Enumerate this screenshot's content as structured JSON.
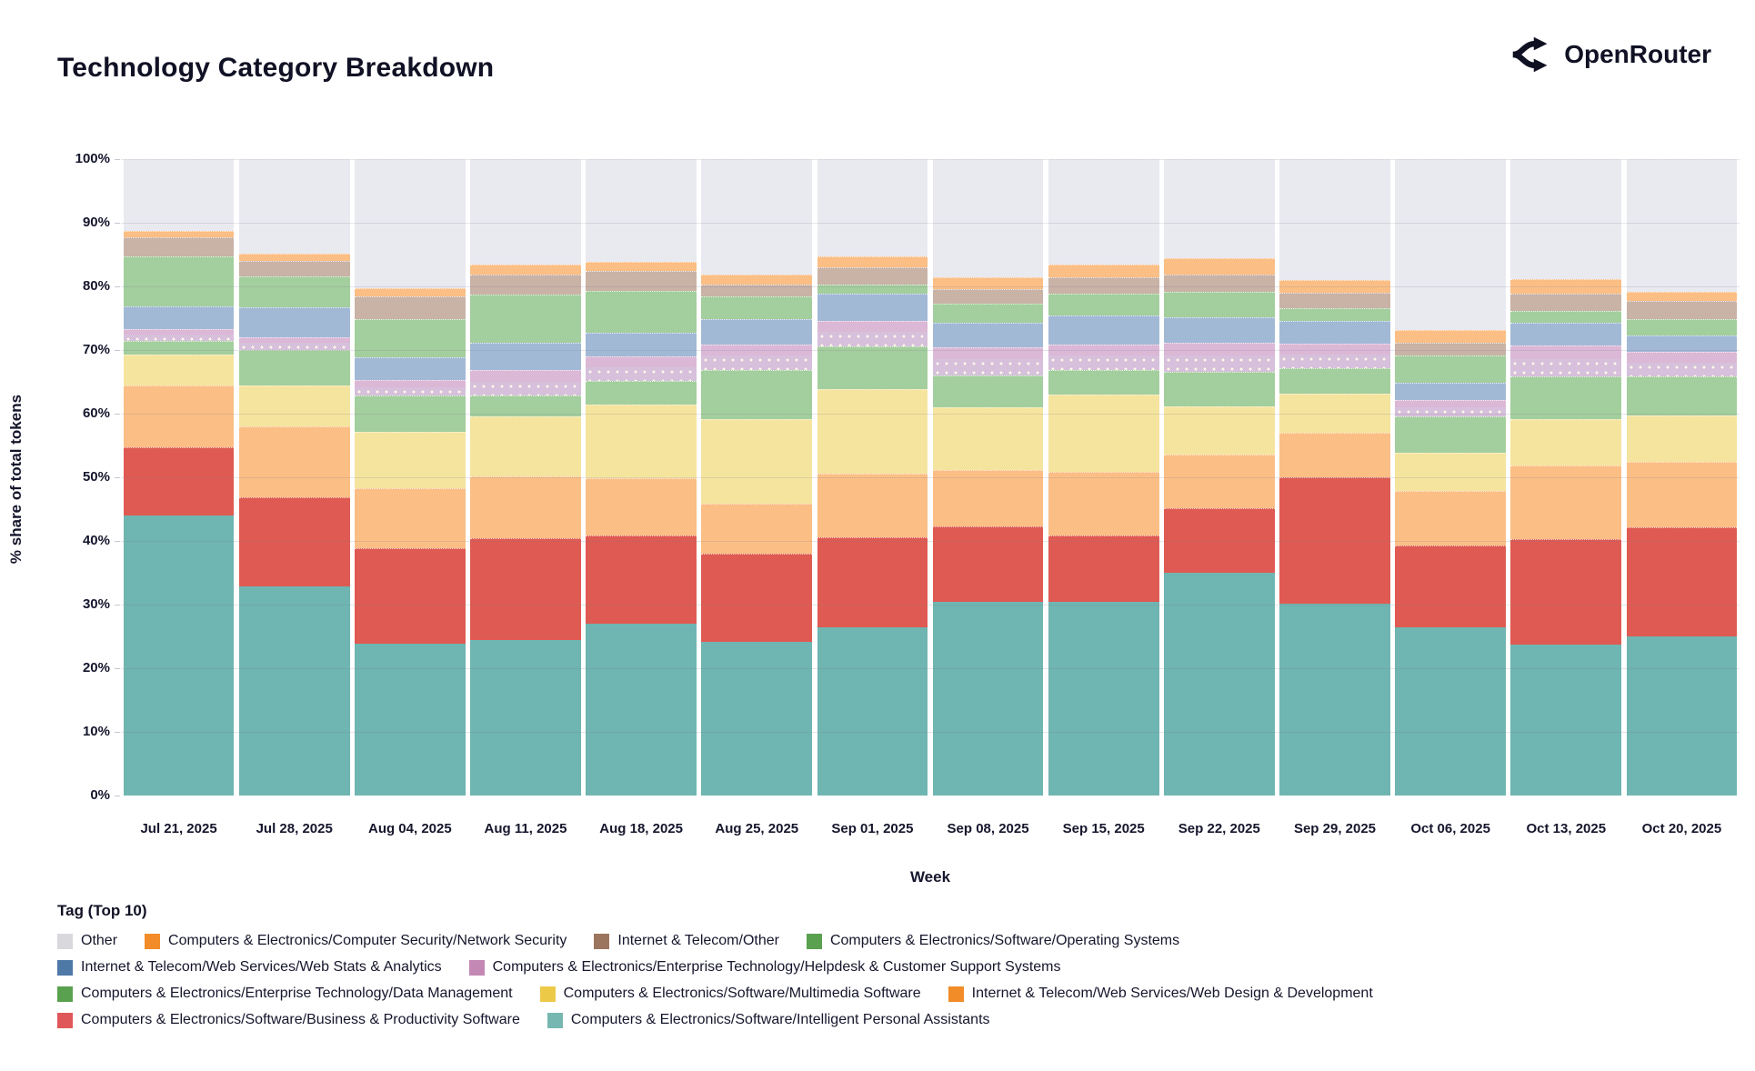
{
  "header": {
    "title": "Technology Category Breakdown",
    "brand": "OpenRouter"
  },
  "chart_data": {
    "type": "bar",
    "stacked": true,
    "title": "Technology Category Breakdown",
    "xlabel": "Week",
    "ylabel": "% share of total tokens",
    "ylim": [
      0,
      100
    ],
    "y_tick_step": 10,
    "y_tick_suffix": "%",
    "grid": true,
    "legend_title": "Tag (Top 10)",
    "legend_position": "bottom",
    "categories": [
      "Jul 21, 2025",
      "Jul 28, 2025",
      "Aug 04, 2025",
      "Aug 11, 2025",
      "Aug 18, 2025",
      "Aug 25, 2025",
      "Sep 01, 2025",
      "Sep 08, 2025",
      "Sep 15, 2025",
      "Sep 22, 2025",
      "Sep 29, 2025",
      "Oct 06, 2025",
      "Oct 13, 2025",
      "Oct 20, 2025"
    ],
    "series": [
      {
        "name": "Computers & Electronics/Software/Intelligent Personal Assistants",
        "bar_color": "#6FB5B1",
        "legend_color": "#76B7B2",
        "pattern": "none",
        "values": [
          44.0,
          32.9,
          23.8,
          24.4,
          27.0,
          24.2,
          26.4,
          30.5,
          30.5,
          35.0,
          30.2,
          26.4,
          23.7,
          25.0
        ]
      },
      {
        "name": "Computers & Electronics/Software/Business & Productivity Software",
        "bar_color": "#DF5A52",
        "legend_color": "#E05759",
        "pattern": "none",
        "values": [
          10.7,
          13.9,
          15.0,
          16.0,
          13.9,
          13.8,
          14.2,
          11.8,
          10.3,
          10.2,
          19.8,
          12.9,
          16.6,
          17.1
        ]
      },
      {
        "name": "Internet & Telecom/Web Services/Web Design & Development",
        "bar_color": "#FBBE85",
        "legend_color": "#F28C28",
        "pattern": "none",
        "values": [
          9.8,
          11.2,
          9.5,
          9.8,
          9.0,
          7.8,
          10.0,
          8.9,
          10.1,
          8.4,
          7.0,
          8.6,
          11.5,
          10.3
        ]
      },
      {
        "name": "Computers & Electronics/Software/Multimedia Software",
        "bar_color": "#F5E49E",
        "legend_color": "#EDC948",
        "pattern": "none",
        "values": [
          4.8,
          6.4,
          8.8,
          9.4,
          11.5,
          13.4,
          13.3,
          9.8,
          12.1,
          7.5,
          6.2,
          6.0,
          7.3,
          7.3
        ]
      },
      {
        "name": "Computers & Electronics/Enterprise Technology/Data Management",
        "bar_color": "#A3CE9D",
        "legend_color": "#59A14F",
        "pattern": "none",
        "values": [
          2.2,
          5.6,
          5.8,
          3.2,
          3.7,
          7.7,
          6.7,
          5.0,
          3.9,
          5.5,
          4.0,
          5.7,
          6.8,
          6.1
        ]
      },
      {
        "name": "Computers & Electronics/Enterprise Technology/Helpdesk & Customer Support Systems",
        "bar_color": "#DBB8D6",
        "legend_color": "#C488B4",
        "pattern": "dots-lower",
        "values": [
          1.8,
          2.0,
          2.4,
          4.0,
          3.9,
          3.9,
          4.0,
          4.5,
          4.0,
          4.6,
          3.8,
          2.6,
          4.8,
          3.9
        ]
      },
      {
        "name": "Internet & Telecom/Web Services/Web Stats & Analytics",
        "bar_color": "#A2B9D6",
        "legend_color": "#4E79A7",
        "pattern": "none",
        "values": [
          3.6,
          4.7,
          3.5,
          4.4,
          3.7,
          4.0,
          4.3,
          3.8,
          4.6,
          4.0,
          3.6,
          2.7,
          3.6,
          2.6
        ]
      },
      {
        "name": "Computers & Electronics/Software/Operating Systems",
        "bar_color": "#A3CE9D",
        "legend_color": "#59A14F",
        "pattern": "none",
        "values": [
          7.8,
          4.9,
          6.0,
          7.5,
          6.6,
          3.7,
          1.4,
          3.0,
          3.3,
          4.0,
          2.0,
          4.3,
          1.8,
          2.5
        ]
      },
      {
        "name": "Internet & Telecom/Other",
        "bar_color": "#C9B2A6",
        "legend_color": "#9C755F",
        "pattern": "legend-dots",
        "values": [
          3.0,
          2.4,
          3.6,
          3.2,
          3.2,
          1.8,
          2.7,
          2.3,
          2.7,
          2.7,
          2.4,
          2.0,
          2.7,
          2.9
        ]
      },
      {
        "name": "Computers & Electronics/Computer Security/Network Security",
        "bar_color": "#FBBE85",
        "legend_color": "#F28C28",
        "pattern": "none",
        "values": [
          1.0,
          1.1,
          1.3,
          1.6,
          1.3,
          1.5,
          1.7,
          1.8,
          1.9,
          2.5,
          2.0,
          2.0,
          2.4,
          1.5
        ]
      },
      {
        "name": "Other",
        "bar_color": "#E9E9F0",
        "legend_color": "#D8D8DD",
        "pattern": "none",
        "values": [
          11.3,
          14.9,
          20.3,
          16.5,
          16.2,
          18.2,
          15.3,
          18.6,
          16.6,
          15.6,
          19.0,
          26.8,
          18.8,
          20.8
        ]
      }
    ],
    "legend_rows": [
      [
        10,
        9,
        8,
        7
      ],
      [
        6,
        5
      ],
      [
        4,
        3,
        2
      ],
      [
        1,
        0
      ]
    ]
  }
}
